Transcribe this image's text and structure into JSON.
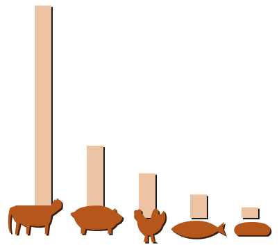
{
  "chart_data": {
    "type": "bar",
    "categories": [
      "beef",
      "pork",
      "chicken",
      "fish",
      "bread"
    ],
    "icons": [
      "cow-icon",
      "pig-icon",
      "chicken-icon",
      "fish-icon",
      "bread-icon"
    ],
    "values": [
      100,
      34,
      21,
      11,
      5
    ],
    "ylim": [
      0,
      100
    ],
    "grid": false,
    "legend": "none",
    "title": "",
    "xlabel": "",
    "ylabel": ""
  },
  "colors": {
    "bar": "#ecc4a4",
    "bar_shadow": "#1a1a1a",
    "icon": "#b5561a",
    "icon_shadow": "#3a1e0c"
  }
}
